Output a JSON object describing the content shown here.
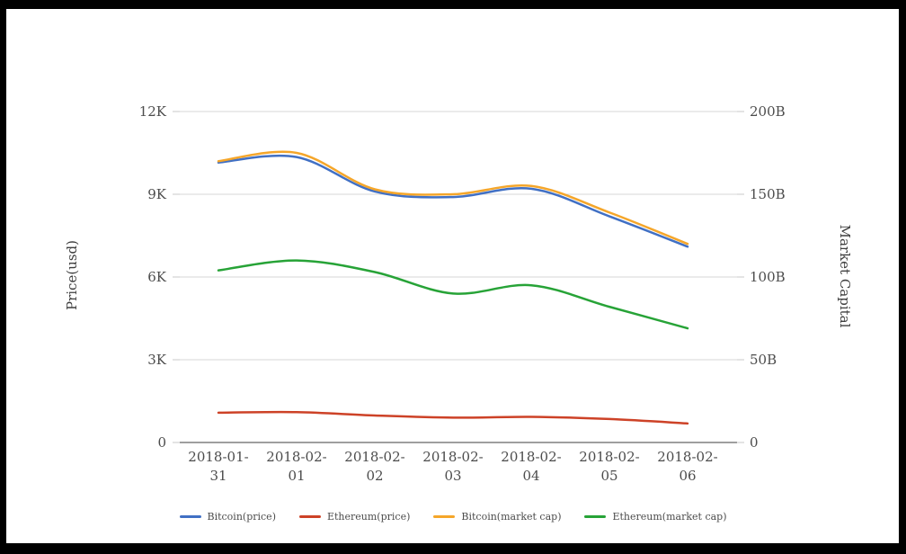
{
  "chart_data": {
    "type": "line",
    "smooth": true,
    "grid": "horizontal-only",
    "legend_position": "bottom-center",
    "x_labels": [
      "2018-01-31",
      "2018-02-01",
      "2018-02-02",
      "2018-02-03",
      "2018-02-04",
      "2018-02-05",
      "2018-02-06"
    ],
    "left_axis": {
      "title": "Price(usd)",
      "ticks": [
        "0",
        "3K",
        "6K",
        "9K",
        "12K"
      ],
      "range": [
        0,
        12000
      ]
    },
    "right_axis": {
      "title": "Market Capital",
      "ticks": [
        "0",
        "50B",
        "100B",
        "150B",
        "200B"
      ],
      "range": [
        0,
        200
      ]
    },
    "series": [
      {
        "name": "Bitcoin(price)",
        "axis": "left",
        "color": "#4170c4",
        "values": [
          10150,
          10350,
          9100,
          8900,
          9200,
          8200,
          7100
        ]
      },
      {
        "name": "Ethereum(price)",
        "axis": "left",
        "color": "#cd4227",
        "values": [
          1080,
          1100,
          980,
          900,
          930,
          850,
          690
        ]
      },
      {
        "name": "Bitcoin(market cap)",
        "axis": "right",
        "color": "#f5a62a",
        "values": [
          170,
          175,
          153,
          150,
          155,
          139,
          120
        ]
      },
      {
        "name": "Ethereum(market cap)",
        "axis": "right",
        "color": "#27a337",
        "values": [
          104,
          110,
          103,
          90,
          95,
          82,
          69
        ]
      }
    ]
  }
}
